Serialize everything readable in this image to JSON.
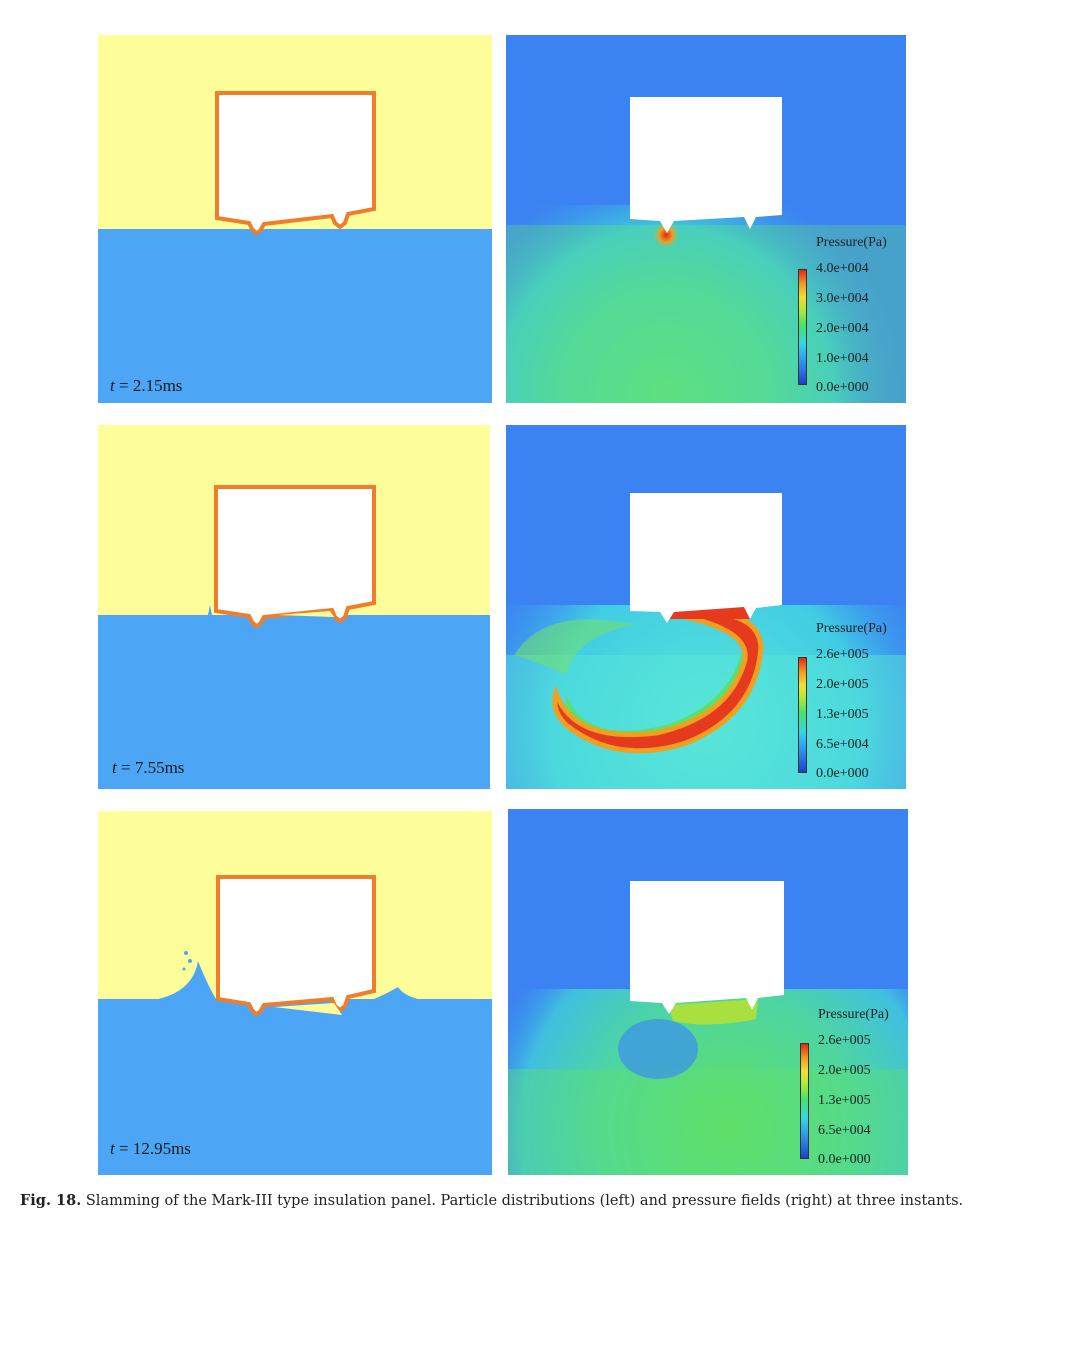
{
  "rows": [
    {
      "time_prefix": "t",
      "time_value": "= 2.15ms",
      "legend": {
        "title": "Pressure(Pa)",
        "ticks": [
          "4.0e+004",
          "3.0e+004",
          "2.0e+004",
          "1.0e+004",
          "0.0e+000"
        ]
      }
    },
    {
      "time_prefix": "t",
      "time_value": "= 7.55ms",
      "legend": {
        "title": "Pressure(Pa)",
        "ticks": [
          "2.6e+005",
          "2.0e+005",
          "1.3e+005",
          "6.5e+004",
          "0.0e+000"
        ]
      }
    },
    {
      "time_prefix": "t",
      "time_value": "= 12.95ms",
      "legend": {
        "title": "Pressure(Pa)",
        "ticks": [
          "2.6e+005",
          "2.0e+005",
          "1.3e+005",
          "6.5e+004",
          "0.0e+000"
        ]
      }
    }
  ],
  "caption": {
    "label": "Fig. 18.",
    "text": "Slamming of the Mark-III type insulation panel. Particle distributions (left) and pressure fields (right) at three instants."
  },
  "colors": {
    "air": "#fdfd9a",
    "water": "#4da6f5",
    "panel_outline": "#f07d2a",
    "pressure_low": "#3b82f2",
    "pressure_high": "#e63a1e"
  }
}
